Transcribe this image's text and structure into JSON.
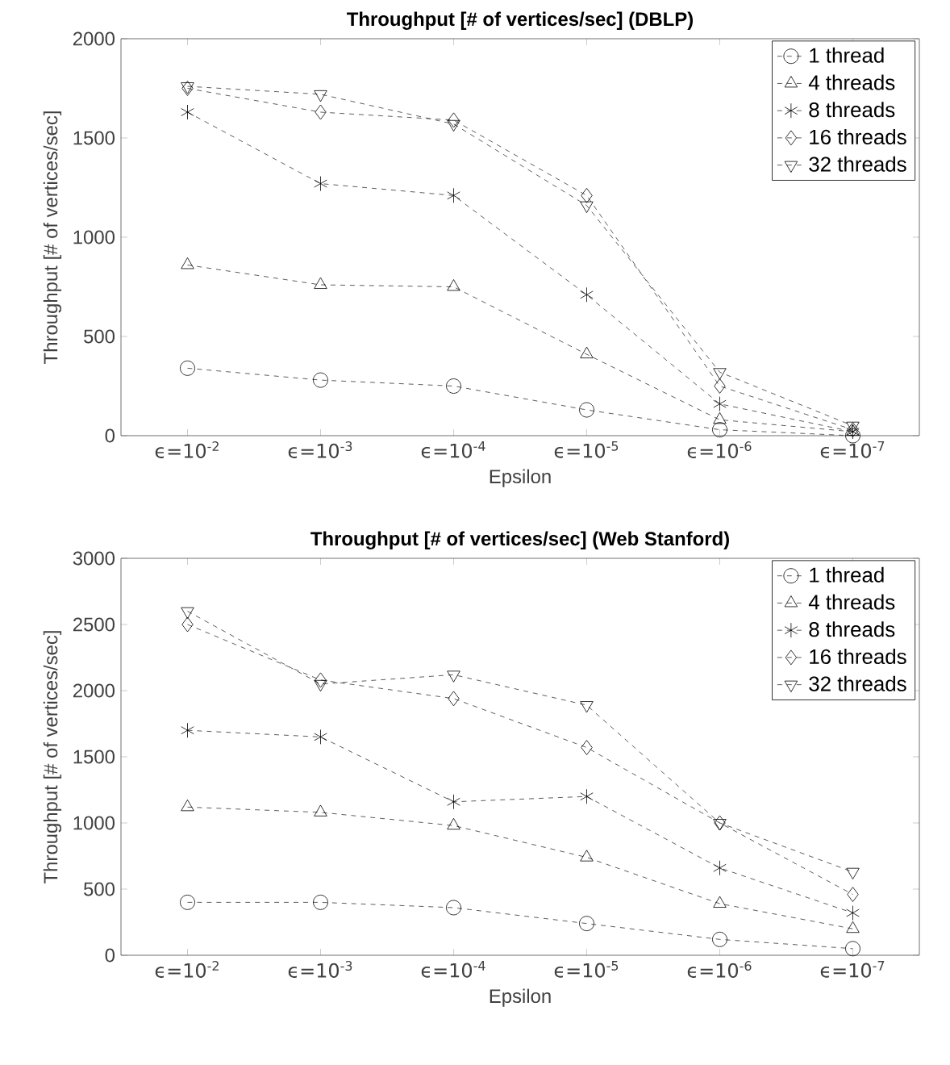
{
  "chart_data": [
    {
      "type": "line",
      "title": "Throughput [# of vertices/sec]  (DBLP)",
      "xlabel": "Epsilon",
      "ylabel": "Throughput [# of vertices/sec]",
      "categories": [
        "ϵ=10$^{-2}$",
        "ϵ=10$^{-3}$",
        "ϵ=10$^{-4}$",
        "ϵ=10$^{-5}$",
        "ϵ=10$^{-6}$",
        "ϵ=10$^{-7}$"
      ],
      "ylim": [
        0,
        2000
      ],
      "yticks": [
        0,
        500,
        1000,
        1500,
        2000
      ],
      "grid": false,
      "legend": "top right",
      "line_style": "dashed",
      "series": [
        {
          "name": "1 thread",
          "color": "#333333",
          "marker": "circle",
          "values": [
            340,
            280,
            250,
            130,
            30,
            0
          ]
        },
        {
          "name": "4 threads",
          "color": "#333333",
          "marker": "triangle",
          "values": [
            860,
            760,
            750,
            410,
            80,
            20
          ]
        },
        {
          "name": "8 threads",
          "color": "#333333",
          "marker": "cross",
          "values": [
            1630,
            1270,
            1210,
            710,
            160,
            20
          ]
        },
        {
          "name": "16 threads",
          "color": "#333333",
          "marker": "diamond",
          "values": [
            1750,
            1630,
            1590,
            1210,
            250,
            30
          ]
        },
        {
          "name": "32 threads",
          "color": "#333333",
          "marker": "triangle-down",
          "values": [
            1760,
            1720,
            1570,
            1160,
            320,
            50
          ]
        }
      ]
    },
    {
      "type": "line",
      "title": "Throughput [# of vertices/sec]  (Web Stanford)",
      "xlabel": "Epsilon",
      "ylabel": "Throughput [# of vertices/sec]",
      "categories": [
        "ϵ=10$^{-2}$",
        "ϵ=10$^{-3}$",
        "ϵ=10$^{-4}$",
        "ϵ=10$^{-5}$",
        "ϵ=10$^{-6}$",
        "ϵ=10$^{-7}$"
      ],
      "ylim": [
        0,
        3000
      ],
      "yticks": [
        0,
        500,
        1000,
        1500,
        2000,
        2500,
        3000
      ],
      "grid": false,
      "legend": "top right",
      "line_style": "dashed",
      "series": [
        {
          "name": "1 thread",
          "color": "#333333",
          "marker": "circle",
          "values": [
            400,
            400,
            360,
            240,
            120,
            50
          ]
        },
        {
          "name": "4 threads",
          "color": "#333333",
          "marker": "triangle",
          "values": [
            1120,
            1080,
            980,
            740,
            390,
            200
          ]
        },
        {
          "name": "8 threads",
          "color": "#333333",
          "marker": "cross",
          "values": [
            1700,
            1650,
            1160,
            1200,
            660,
            320
          ]
        },
        {
          "name": "16 threads",
          "color": "#333333",
          "marker": "diamond",
          "values": [
            2500,
            2080,
            1940,
            1570,
            1000,
            460
          ]
        },
        {
          "name": "32 threads",
          "color": "#333333",
          "marker": "triangle-down",
          "values": [
            2600,
            2050,
            2120,
            1890,
            1000,
            630
          ]
        }
      ]
    }
  ]
}
